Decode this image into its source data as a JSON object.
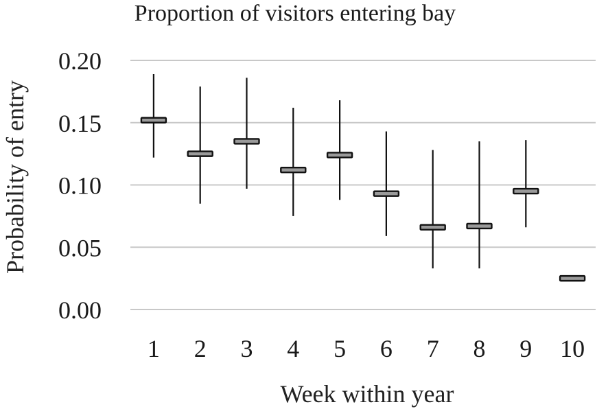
{
  "chart_data": {
    "type": "errorbar",
    "title": "Proportion of visitors entering bay",
    "xlabel": "Week within year",
    "ylabel": "Probability of entry",
    "categories": [
      "1",
      "2",
      "3",
      "4",
      "5",
      "6",
      "7",
      "8",
      "9",
      "10"
    ],
    "y_ticks": [
      "0.00",
      "0.05",
      "0.10",
      "0.15",
      "0.20"
    ],
    "ylim": [
      0,
      0.2
    ],
    "grid": "horizontal",
    "colors": {
      "grid": "#c8c8c8",
      "whisker": "#111111",
      "mean_fill": "#9a9a9a"
    },
    "series": [
      {
        "values": [
          0.152,
          0.125,
          0.135,
          0.112,
          0.124,
          0.093,
          0.066,
          0.067,
          0.095,
          0.025
        ],
        "lower": [
          0.122,
          0.085,
          0.097,
          0.075,
          0.088,
          0.059,
          0.033,
          0.033,
          0.066,
          0.025
        ],
        "upper": [
          0.189,
          0.179,
          0.186,
          0.162,
          0.168,
          0.143,
          0.128,
          0.135,
          0.136,
          0.025
        ]
      }
    ]
  }
}
